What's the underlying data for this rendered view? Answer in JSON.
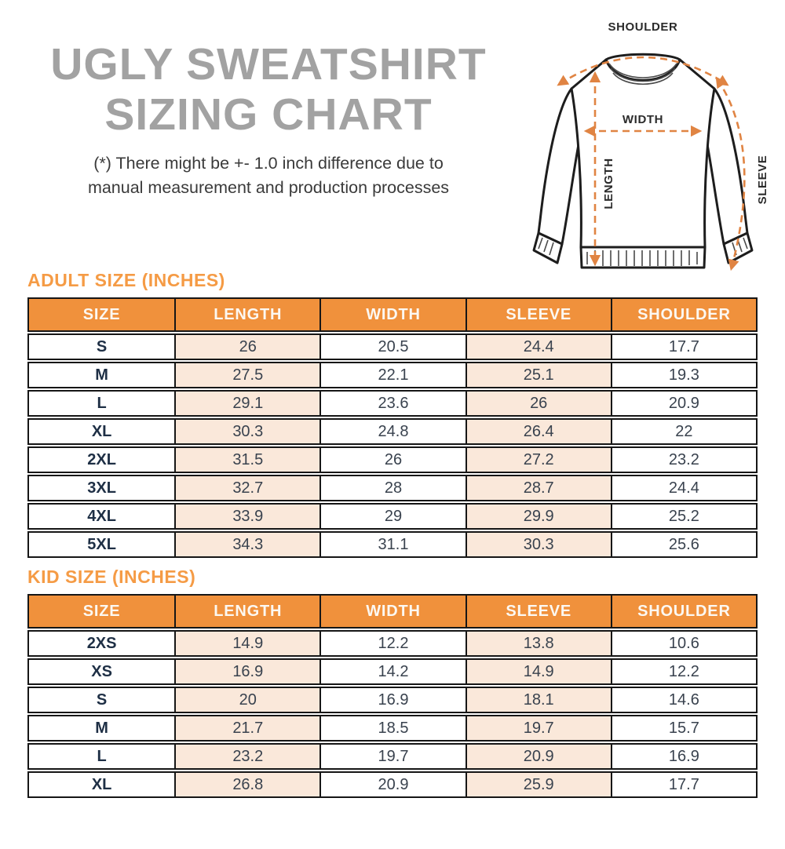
{
  "header": {
    "title_line1": "UGLY SWEATSHIRT",
    "title_line2": "SIZING CHART",
    "disclaimer_line1": "(*) There might be +- 1.0 inch difference due to",
    "disclaimer_line2": "manual measurement and production processes"
  },
  "diagram": {
    "labels": {
      "shoulder": "SHOULDER",
      "width": "WIDTH",
      "length": "LENGTH",
      "sleeve": "SLEEVE"
    }
  },
  "colors": {
    "accent_orange": "#F0913C",
    "section_title_orange": "#F59B45",
    "peach_cell": "#FAE8DA",
    "arrow_orange": "#E08443",
    "title_gray": "#A2A2A2",
    "table_text": "#39424E",
    "size_text": "#1E2F45"
  },
  "adult_table": {
    "title": "ADULT SIZE (INCHES)",
    "columns": [
      "SIZE",
      "LENGTH",
      "WIDTH",
      "SLEEVE",
      "SHOULDER"
    ],
    "rows": [
      [
        "S",
        "26",
        "20.5",
        "24.4",
        "17.7"
      ],
      [
        "M",
        "27.5",
        "22.1",
        "25.1",
        "19.3"
      ],
      [
        "L",
        "29.1",
        "23.6",
        "26",
        "20.9"
      ],
      [
        "XL",
        "30.3",
        "24.8",
        "26.4",
        "22"
      ],
      [
        "2XL",
        "31.5",
        "26",
        "27.2",
        "23.2"
      ],
      [
        "3XL",
        "32.7",
        "28",
        "28.7",
        "24.4"
      ],
      [
        "4XL",
        "33.9",
        "29",
        "29.9",
        "25.2"
      ],
      [
        "5XL",
        "34.3",
        "31.1",
        "30.3",
        "25.6"
      ]
    ]
  },
  "kid_table": {
    "title": "KID SIZE (INCHES)",
    "columns": [
      "SIZE",
      "LENGTH",
      "WIDTH",
      "SLEEVE",
      "SHOULDER"
    ],
    "rows": [
      [
        "2XS",
        "14.9",
        "12.2",
        "13.8",
        "10.6"
      ],
      [
        "XS",
        "16.9",
        "14.2",
        "14.9",
        "12.2"
      ],
      [
        "S",
        "20",
        "16.9",
        "18.1",
        "14.6"
      ],
      [
        "M",
        "21.7",
        "18.5",
        "19.7",
        "15.7"
      ],
      [
        "L",
        "23.2",
        "19.7",
        "20.9",
        "16.9"
      ],
      [
        "XL",
        "26.8",
        "20.9",
        "25.9",
        "17.7"
      ]
    ]
  }
}
